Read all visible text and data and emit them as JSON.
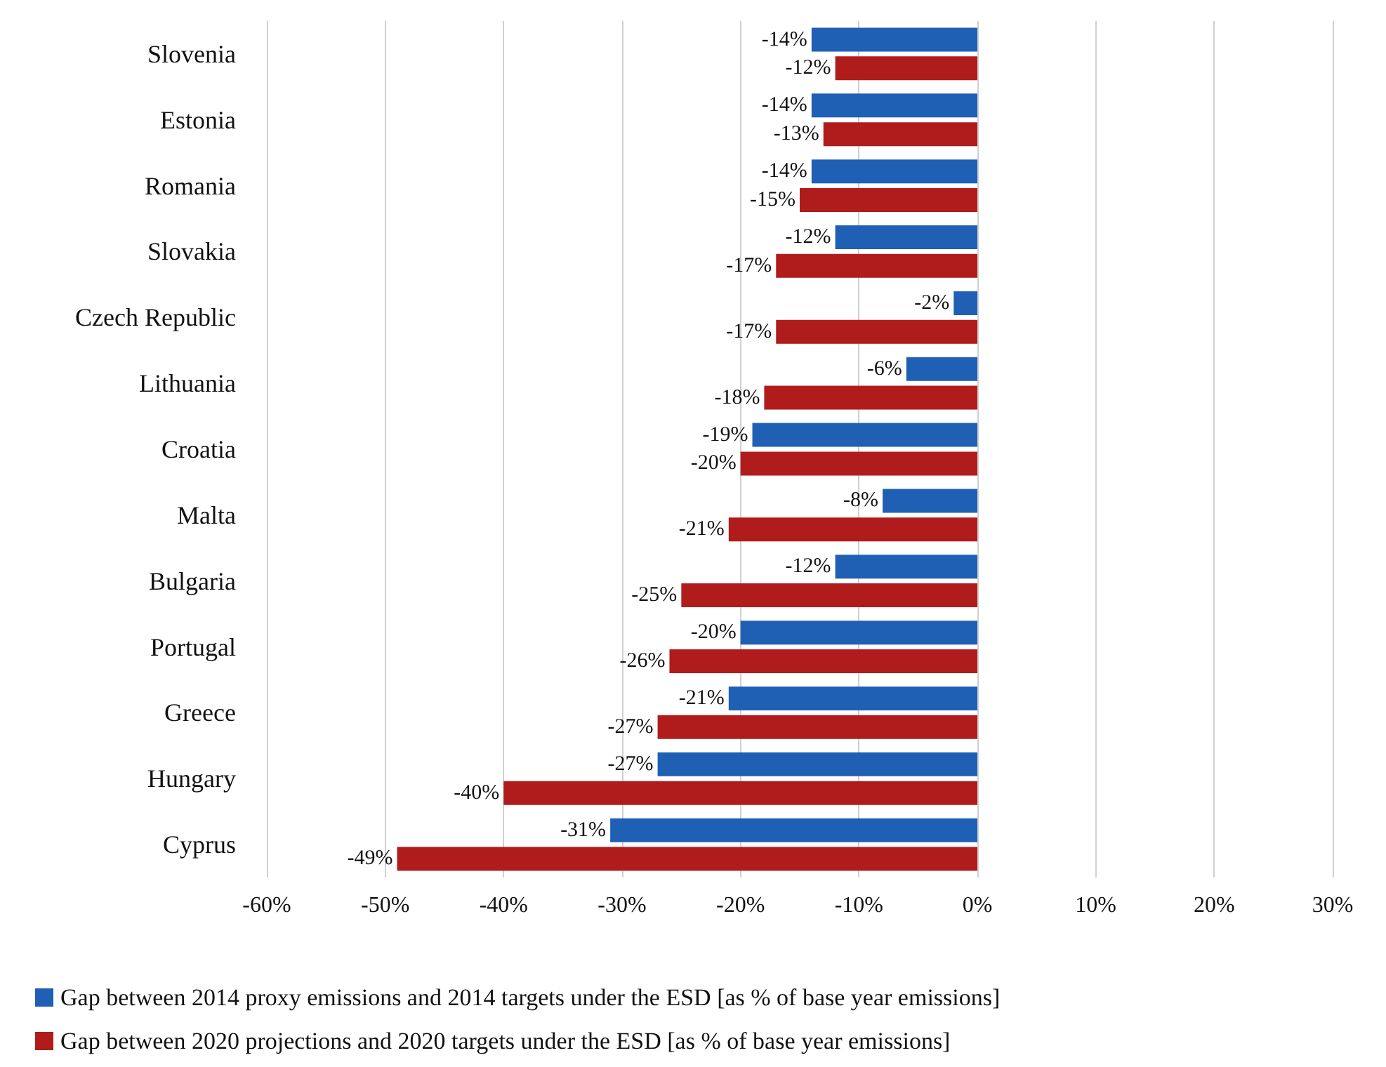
{
  "chart_data": {
    "type": "bar",
    "orientation": "horizontal",
    "categories": [
      "Slovenia",
      "Estonia",
      "Romania",
      "Slovakia",
      "Czech Republic",
      "Lithuania",
      "Croatia",
      "Malta",
      "Bulgaria",
      "Portugal",
      "Greece",
      "Hungary",
      "Cyprus"
    ],
    "series": [
      {
        "name": "Gap between 2014 proxy emissions and 2014 targets under the ESD [as % of base year emissions]",
        "color": "#1f5fb4",
        "values": [
          -14,
          -14,
          -14,
          -12,
          -2,
          -6,
          -19,
          -8,
          -12,
          -20,
          -21,
          -27,
          -31
        ],
        "value_labels": [
          "-14%",
          "-14%",
          "-14%",
          "-12%",
          "-2%",
          "-6%",
          "-19%",
          "-8%",
          "-12%",
          "-20%",
          "-21%",
          "-27%",
          "-31%"
        ]
      },
      {
        "name": "Gap between 2020 projections and 2020 targets under the ESD [as % of base year emissions]",
        "color": "#b01c1c",
        "values": [
          -12,
          -13,
          -15,
          -17,
          -17,
          -18,
          -20,
          -21,
          -25,
          -26,
          -27,
          -40,
          -49
        ],
        "value_labels": [
          "-12%",
          "-13%",
          "-15%",
          "-17%",
          "-17%",
          "-18%",
          "-20%",
          "-21%",
          "-25%",
          "-26%",
          "-27%",
          "-40%",
          "-49%"
        ]
      }
    ],
    "xlim": [
      -60,
      30
    ],
    "xticks": [
      {
        "value": -60,
        "label": "-60%"
      },
      {
        "value": -50,
        "label": "-50%"
      },
      {
        "value": -40,
        "label": "-40%"
      },
      {
        "value": -30,
        "label": "-30%"
      },
      {
        "value": -20,
        "label": "-20%"
      },
      {
        "value": -10,
        "label": "-10%"
      },
      {
        "value": 0,
        "label": "0%"
      },
      {
        "value": 10,
        "label": "10%"
      },
      {
        "value": 20,
        "label": "20%"
      },
      {
        "value": 30,
        "label": "30%"
      }
    ],
    "grid": "x",
    "legend": "bottom"
  }
}
